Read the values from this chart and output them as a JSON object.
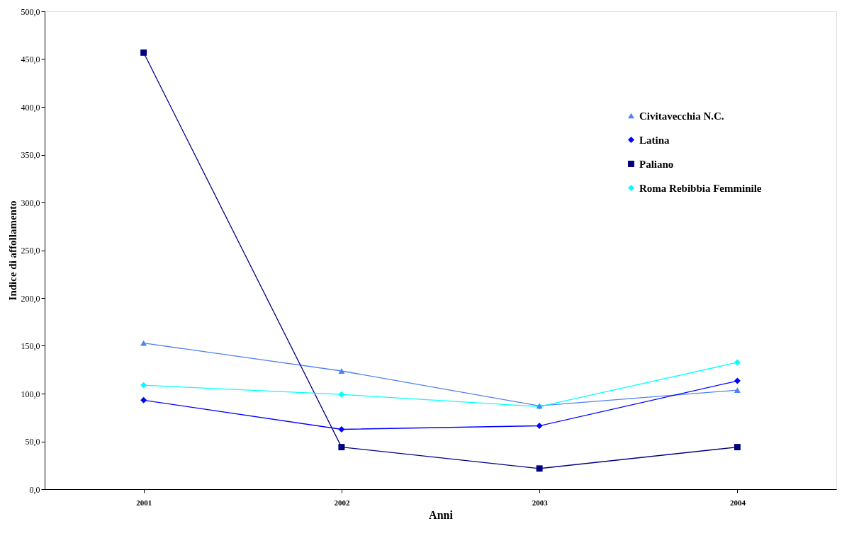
{
  "chart_data": {
    "type": "line",
    "xlabel": "Anni",
    "ylabel": "Indice di affollamento",
    "categories": [
      "2001",
      "2002",
      "2003",
      "2004"
    ],
    "ylim": [
      0,
      500
    ],
    "yticks": [
      {
        "value": 0,
        "label": "0,0"
      },
      {
        "value": 50,
        "label": "50,0"
      },
      {
        "value": 100,
        "label": "100,0"
      },
      {
        "value": 150,
        "label": "150,0"
      },
      {
        "value": 200,
        "label": "200,0"
      },
      {
        "value": 250,
        "label": "250,0"
      },
      {
        "value": 300,
        "label": "300,0"
      },
      {
        "value": 350,
        "label": "350,0"
      },
      {
        "value": 400,
        "label": "400,0"
      },
      {
        "value": 450,
        "label": "450,0"
      },
      {
        "value": 500,
        "label": "500,0"
      }
    ],
    "grid": false,
    "legend": "top right",
    "line_style": "solid",
    "series": [
      {
        "name": "Civitavecchia N.C.",
        "color": "#4f81f0",
        "marker": "triangle",
        "values": [
          152.8,
          123.7,
          87.2,
          103.6
        ]
      },
      {
        "name": "Latina",
        "color": "#0000ff",
        "marker": "diamond",
        "values": [
          93.1,
          62.6,
          66.3,
          113.3
        ]
      },
      {
        "name": "Paliano",
        "color": "#000080",
        "marker": "square",
        "values": [
          456.8,
          44.0,
          21.6,
          44.0
        ]
      },
      {
        "name": "Roma Rebibbia Femminile",
        "color": "#00ffff",
        "marker": "diamond",
        "values": [
          108.8,
          99.1,
          86.4,
          132.6
        ]
      }
    ]
  }
}
